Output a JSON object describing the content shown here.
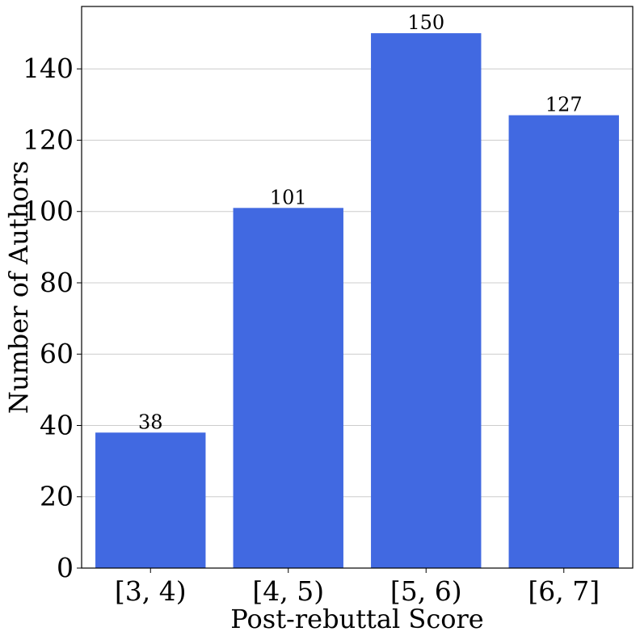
{
  "chart_data": {
    "type": "bar",
    "title": "",
    "xlabel": "Post-rebuttal Score",
    "ylabel": "Number of Authors",
    "categories": [
      "[3, 4)",
      "[4, 5)",
      "[5, 6)",
      "[6, 7]"
    ],
    "values": [
      38,
      101,
      150,
      127
    ],
    "data_labels": [
      "38",
      "101",
      "150",
      "127"
    ],
    "ylim": [
      0,
      157.5
    ],
    "yticks": [
      0,
      20,
      40,
      60,
      80,
      100,
      120,
      140
    ],
    "ytick_labels": [
      "0",
      "20",
      "40",
      "60",
      "80",
      "100",
      "120",
      "140"
    ],
    "grid": "y-major",
    "bar_color": "#4169E1",
    "grid_color": "#cccccc"
  }
}
